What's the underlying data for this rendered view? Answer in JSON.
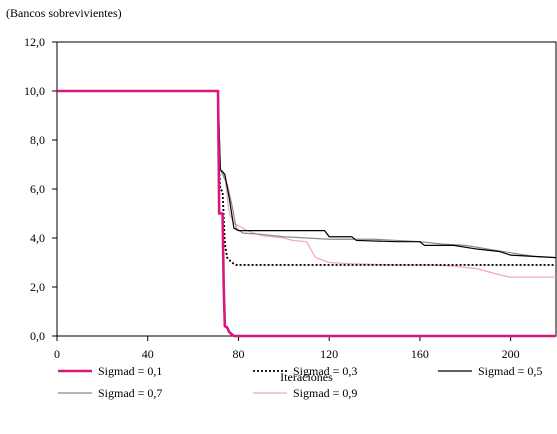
{
  "chart_data": {
    "type": "line",
    "unit_label": "(Bancos sobrevivientes)",
    "xlabel": "Iteraciones",
    "ylabel": "",
    "xlim": [
      0,
      220
    ],
    "ylim": [
      0,
      12
    ],
    "x_ticks": [
      0,
      40,
      80,
      120,
      160,
      200
    ],
    "x_tick_labels": [
      "0",
      "40",
      "80",
      "120",
      "160",
      "200"
    ],
    "y_ticks": [
      0,
      2,
      4,
      6,
      8,
      10,
      12
    ],
    "y_tick_labels": [
      "0,0",
      "2,0",
      "4,0",
      "6,0",
      "8,0",
      "10,0",
      "12,0"
    ],
    "grid": false,
    "legend_position": "bottom",
    "series": [
      {
        "name": "Sigmad = 0,1",
        "color": "#d6197a",
        "style": "solid-thick",
        "points": [
          [
            0,
            10
          ],
          [
            71,
            10
          ],
          [
            71.5,
            5
          ],
          [
            73,
            5
          ],
          [
            73.5,
            2
          ],
          [
            74,
            0.4
          ],
          [
            75,
            0.35
          ],
          [
            76,
            0.15
          ],
          [
            78,
            0
          ],
          [
            220,
            0
          ]
        ]
      },
      {
        "name": "Sigmad = 0,3",
        "color": "#000000",
        "style": "dotted",
        "points": [
          [
            0,
            10
          ],
          [
            71,
            10
          ],
          [
            71.5,
            6.8
          ],
          [
            72,
            6.0
          ],
          [
            73,
            5.9
          ],
          [
            74,
            3.8
          ],
          [
            75,
            3.2
          ],
          [
            77,
            3.0
          ],
          [
            79,
            2.9
          ],
          [
            120,
            2.9
          ],
          [
            150,
            2.9
          ],
          [
            220,
            2.9
          ]
        ]
      },
      {
        "name": "Sigmad = 0,5",
        "color": "#000000",
        "style": "solid",
        "points": [
          [
            0,
            10
          ],
          [
            71,
            10
          ],
          [
            72,
            6.8
          ],
          [
            74,
            6.6
          ],
          [
            76,
            5.6
          ],
          [
            78,
            4.4
          ],
          [
            80,
            4.3
          ],
          [
            100,
            4.3
          ],
          [
            118,
            4.3
          ],
          [
            120,
            4.05
          ],
          [
            130,
            4.05
          ],
          [
            132,
            3.9
          ],
          [
            150,
            3.85
          ],
          [
            160,
            3.85
          ],
          [
            162,
            3.7
          ],
          [
            175,
            3.7
          ],
          [
            185,
            3.55
          ],
          [
            195,
            3.45
          ],
          [
            200,
            3.3
          ],
          [
            220,
            3.2
          ]
        ]
      },
      {
        "name": "Sigmad = 0,7",
        "color": "#8a8a8a",
        "style": "solid",
        "points": [
          [
            0,
            10
          ],
          [
            71,
            10
          ],
          [
            72,
            6.8
          ],
          [
            75,
            6.2
          ],
          [
            77,
            5.4
          ],
          [
            79,
            4.4
          ],
          [
            82,
            4.2
          ],
          [
            90,
            4.15
          ],
          [
            100,
            4.05
          ],
          [
            110,
            4.0
          ],
          [
            120,
            3.95
          ],
          [
            140,
            3.95
          ],
          [
            160,
            3.85
          ],
          [
            170,
            3.75
          ],
          [
            180,
            3.7
          ],
          [
            190,
            3.55
          ],
          [
            200,
            3.4
          ],
          [
            210,
            3.25
          ],
          [
            220,
            3.2
          ]
        ]
      },
      {
        "name": "Sigmad = 0,9",
        "color": "#f2a6b8",
        "style": "solid",
        "points": [
          [
            0,
            10
          ],
          [
            71,
            10
          ],
          [
            72,
            6.8
          ],
          [
            74,
            6.5
          ],
          [
            76,
            5.0
          ],
          [
            78,
            4.6
          ],
          [
            80,
            4.5
          ],
          [
            84,
            4.3
          ],
          [
            90,
            4.1
          ],
          [
            100,
            4.0
          ],
          [
            104,
            3.9
          ],
          [
            110,
            3.85
          ],
          [
            114,
            3.2
          ],
          [
            120,
            3.0
          ],
          [
            130,
            2.95
          ],
          [
            150,
            2.9
          ],
          [
            165,
            2.9
          ],
          [
            175,
            2.85
          ],
          [
            185,
            2.75
          ],
          [
            195,
            2.5
          ],
          [
            200,
            2.4
          ],
          [
            220,
            2.4
          ]
        ]
      }
    ]
  }
}
